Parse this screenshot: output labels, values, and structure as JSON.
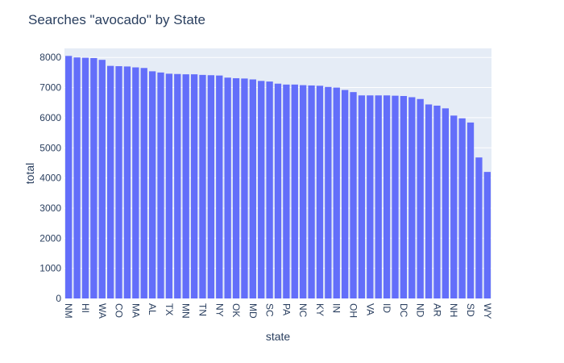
{
  "chart_data": {
    "type": "bar",
    "title": "Searches \"avocado\" by State",
    "xlabel": "state",
    "ylabel": "total",
    "ylim": [
      0,
      8300
    ],
    "yticks": [
      0,
      1000,
      2000,
      3000,
      4000,
      5000,
      6000,
      7000,
      8000
    ],
    "y_tick_labels": [
      "0",
      "1000",
      "2000",
      "3000",
      "4000",
      "5000",
      "6000",
      "7000",
      "8000"
    ],
    "grid": true,
    "categories": [
      "NM",
      "",
      "HI",
      "",
      "WA",
      "",
      "CO",
      "",
      "MA",
      "",
      "AL",
      "",
      "TX",
      "",
      "MN",
      "",
      "TN",
      "",
      "NY",
      "",
      "OK",
      "",
      "MD",
      "",
      "SC",
      "",
      "PA",
      "",
      "NC",
      "",
      "KY",
      "",
      "IN",
      "",
      "OH",
      "",
      "VA",
      "",
      "ID",
      "",
      "DC",
      "",
      "ND",
      "",
      "AR",
      "",
      "NH",
      "",
      "SD",
      "",
      "WY"
    ],
    "values": [
      8050,
      8000,
      7990,
      7980,
      7920,
      7720,
      7710,
      7700,
      7670,
      7650,
      7540,
      7500,
      7460,
      7450,
      7440,
      7440,
      7420,
      7410,
      7400,
      7330,
      7310,
      7300,
      7270,
      7220,
      7200,
      7130,
      7100,
      7100,
      7080,
      7070,
      7060,
      7020,
      7000,
      6920,
      6850,
      6740,
      6740,
      6740,
      6740,
      6730,
      6720,
      6680,
      6620,
      6440,
      6400,
      6310,
      6070,
      5980,
      5840,
      4680,
      4200
    ],
    "bar_color": "#636efa",
    "plot_bg": "#e5ecf6",
    "grid_color": "#ffffff",
    "text_color": "#2a3f5f"
  }
}
